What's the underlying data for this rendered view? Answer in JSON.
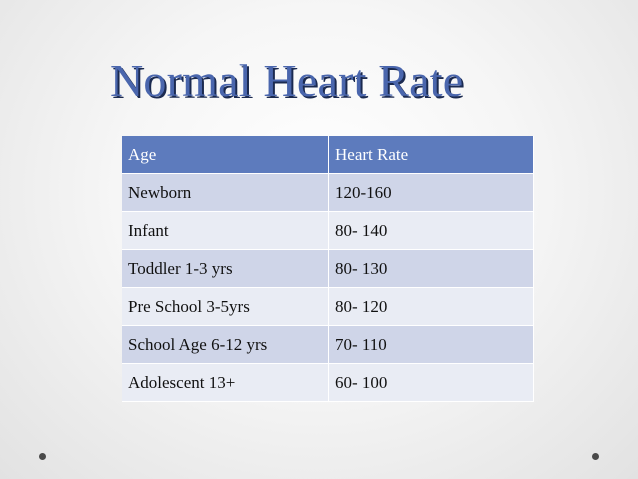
{
  "slide": {
    "title": "Normal Heart Rate"
  },
  "table": {
    "headers": [
      "Age",
      "Heart Rate"
    ],
    "rows": [
      [
        "Newborn",
        "120-160"
      ],
      [
        "Infant",
        "80- 140"
      ],
      [
        "Toddler 1-3 yrs",
        "80- 130"
      ],
      [
        "Pre School 3-5yrs",
        "80- 120"
      ],
      [
        "School Age 6-12 yrs",
        "70- 110"
      ],
      [
        "Adolescent 13+",
        "60- 100"
      ]
    ]
  },
  "colors": {
    "title": "#4a66ad",
    "header_fill": "#5d7bbd",
    "row_odd": "#cfd5e8",
    "row_even": "#e9ecf4"
  }
}
